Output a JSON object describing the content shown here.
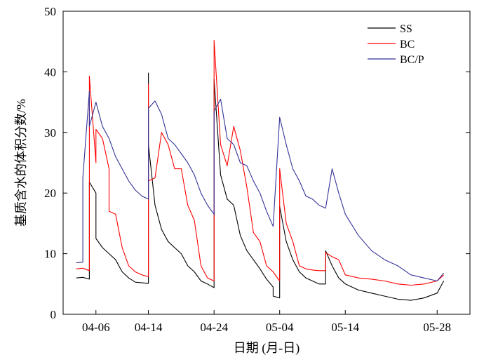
{
  "chart_data": {
    "type": "line",
    "xlabel": "日期 (月-日)",
    "ylabel": "基质含水的体积分数/%",
    "ylim": [
      0,
      50
    ],
    "xlim": [
      "04-01",
      "06-02"
    ],
    "yticks": [
      0,
      10,
      20,
      30,
      40,
      50
    ],
    "xticks": [
      "04-06",
      "04-14",
      "04-24",
      "05-04",
      "05-14",
      "05-28"
    ],
    "grid": false,
    "legend_position": "top-right",
    "series": [
      {
        "name": "SS",
        "color": "#000000",
        "points": [
          [
            "04-03",
            6.0
          ],
          [
            "04-04",
            6.1
          ],
          [
            "04-05",
            5.8
          ],
          [
            "04-05",
            21.8
          ],
          [
            "04-06",
            20.0
          ],
          [
            "04-06",
            12.5
          ],
          [
            "04-07",
            11.0
          ],
          [
            "04-08",
            10.0
          ],
          [
            "04-09",
            9.0
          ],
          [
            "04-10",
            7.0
          ],
          [
            "04-11",
            6.0
          ],
          [
            "04-12",
            5.3
          ],
          [
            "04-13",
            5.2
          ],
          [
            "04-14",
            5.1
          ],
          [
            "04-14",
            39.8
          ],
          [
            "04-14",
            28.0
          ],
          [
            "04-15",
            18.0
          ],
          [
            "04-16",
            14.0
          ],
          [
            "04-17",
            12.0
          ],
          [
            "04-18",
            11.0
          ],
          [
            "04-19",
            10.0
          ],
          [
            "04-20",
            8.0
          ],
          [
            "04-21",
            7.0
          ],
          [
            "04-22",
            5.5
          ],
          [
            "04-23",
            5.0
          ],
          [
            "04-24",
            4.4
          ],
          [
            "04-24",
            38.8
          ],
          [
            "04-25",
            23.0
          ],
          [
            "04-26",
            19.0
          ],
          [
            "04-27",
            18.0
          ],
          [
            "04-28",
            13.0
          ],
          [
            "04-29",
            10.5
          ],
          [
            "04-30",
            9.0
          ],
          [
            "05-01",
            7.5
          ],
          [
            "05-02",
            5.8
          ],
          [
            "05-03",
            4.5
          ],
          [
            "05-03",
            3.0
          ],
          [
            "05-04",
            2.7
          ],
          [
            "05-04",
            17.8
          ],
          [
            "05-05",
            12.0
          ],
          [
            "05-06",
            9.0
          ],
          [
            "05-07",
            7.0
          ],
          [
            "05-08",
            6.0
          ],
          [
            "05-09",
            5.5
          ],
          [
            "05-10",
            5.0
          ],
          [
            "05-11",
            5.0
          ],
          [
            "05-11",
            10.5
          ],
          [
            "05-12",
            8.0
          ],
          [
            "05-13",
            6.0
          ],
          [
            "05-14",
            5.0
          ],
          [
            "05-16",
            4.0
          ],
          [
            "05-18",
            3.5
          ],
          [
            "05-20",
            3.0
          ],
          [
            "05-22",
            2.5
          ],
          [
            "05-24",
            2.3
          ],
          [
            "05-26",
            2.7
          ],
          [
            "05-28",
            3.5
          ],
          [
            "05-29",
            5.5
          ]
        ]
      },
      {
        "name": "BC",
        "color": "#ff0000",
        "points": [
          [
            "04-03",
            7.5
          ],
          [
            "04-04",
            7.6
          ],
          [
            "04-05",
            7.2
          ],
          [
            "04-05",
            39.3
          ],
          [
            "04-06",
            25.0
          ],
          [
            "04-06",
            30.5
          ],
          [
            "04-07",
            29.0
          ],
          [
            "04-08",
            24.0
          ],
          [
            "04-08",
            17.0
          ],
          [
            "04-09",
            16.5
          ],
          [
            "04-10",
            11.0
          ],
          [
            "04-11",
            8.0
          ],
          [
            "04-12",
            7.0
          ],
          [
            "04-13",
            6.5
          ],
          [
            "04-14",
            6.2
          ],
          [
            "04-14",
            38.0
          ],
          [
            "04-14",
            22.0
          ],
          [
            "04-15",
            22.5
          ],
          [
            "04-16",
            30.0
          ],
          [
            "04-17",
            28.0
          ],
          [
            "04-18",
            24.0
          ],
          [
            "04-19",
            24.0
          ],
          [
            "04-20",
            18.0
          ],
          [
            "04-21",
            15.5
          ],
          [
            "04-22",
            8.0
          ],
          [
            "04-23",
            6.0
          ],
          [
            "04-24",
            5.5
          ],
          [
            "04-24",
            45.2
          ],
          [
            "04-25",
            28.0
          ],
          [
            "04-26",
            24.5
          ],
          [
            "04-27",
            31.0
          ],
          [
            "04-28",
            27.0
          ],
          [
            "04-29",
            21.0
          ],
          [
            "04-30",
            13.5
          ],
          [
            "05-01",
            12.0
          ],
          [
            "05-02",
            8.0
          ],
          [
            "05-03",
            7.0
          ],
          [
            "05-04",
            5.5
          ],
          [
            "05-04",
            24.0
          ],
          [
            "05-05",
            15.0
          ],
          [
            "05-06",
            12.0
          ],
          [
            "05-07",
            8.0
          ],
          [
            "05-08",
            7.5
          ],
          [
            "05-09",
            7.3
          ],
          [
            "05-10",
            7.2
          ],
          [
            "05-11",
            7.2
          ],
          [
            "05-11",
            10.2
          ],
          [
            "05-12",
            9.5
          ],
          [
            "05-13",
            9.0
          ],
          [
            "05-14",
            6.5
          ],
          [
            "05-16",
            6.0
          ],
          [
            "05-18",
            5.8
          ],
          [
            "05-20",
            5.5
          ],
          [
            "05-22",
            5.0
          ],
          [
            "05-24",
            4.8
          ],
          [
            "05-26",
            5.0
          ],
          [
            "05-28",
            5.5
          ],
          [
            "05-29",
            6.5
          ]
        ]
      },
      {
        "name": "BC/P",
        "color": "#333399",
        "points": [
          [
            "04-03",
            8.5
          ],
          [
            "04-04",
            8.6
          ],
          [
            "04-04",
            22.5
          ],
          [
            "04-05",
            36.8
          ],
          [
            "04-05",
            31.0
          ],
          [
            "04-06",
            35.0
          ],
          [
            "04-07",
            31.0
          ],
          [
            "04-08",
            29.0
          ],
          [
            "04-09",
            26.0
          ],
          [
            "04-10",
            24.0
          ],
          [
            "04-11",
            22.0
          ],
          [
            "04-12",
            20.5
          ],
          [
            "04-13",
            19.5
          ],
          [
            "04-14",
            19.0
          ],
          [
            "04-14",
            34.0
          ],
          [
            "04-15",
            35.2
          ],
          [
            "04-16",
            33.0
          ],
          [
            "04-17",
            29.0
          ],
          [
            "04-18",
            28.0
          ],
          [
            "04-19",
            26.5
          ],
          [
            "04-20",
            25.0
          ],
          [
            "04-21",
            23.0
          ],
          [
            "04-22",
            20.0
          ],
          [
            "04-23",
            18.0
          ],
          [
            "04-24",
            16.5
          ],
          [
            "04-24",
            33.5
          ],
          [
            "04-25",
            35.5
          ],
          [
            "04-26",
            29.0
          ],
          [
            "04-27",
            28.0
          ],
          [
            "04-28",
            25.0
          ],
          [
            "04-29",
            24.5
          ],
          [
            "04-30",
            22.0
          ],
          [
            "05-01",
            20.0
          ],
          [
            "05-02",
            17.0
          ],
          [
            "05-03",
            14.5
          ],
          [
            "05-04",
            32.5
          ],
          [
            "05-05",
            28.0
          ],
          [
            "05-06",
            24.0
          ],
          [
            "05-07",
            22.0
          ],
          [
            "05-08",
            19.5
          ],
          [
            "05-09",
            19.0
          ],
          [
            "05-10",
            18.0
          ],
          [
            "05-11",
            17.5
          ],
          [
            "05-12",
            24.0
          ],
          [
            "05-13",
            20.0
          ],
          [
            "05-14",
            16.5
          ],
          [
            "05-16",
            13.0
          ],
          [
            "05-18",
            10.5
          ],
          [
            "05-20",
            9.0
          ],
          [
            "05-22",
            8.0
          ],
          [
            "05-24",
            6.5
          ],
          [
            "05-26",
            6.0
          ],
          [
            "05-28",
            5.5
          ],
          [
            "05-29",
            6.8
          ]
        ]
      }
    ]
  }
}
